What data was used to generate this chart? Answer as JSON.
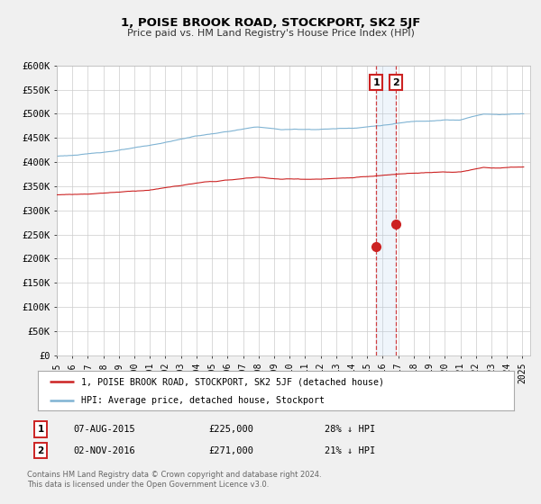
{
  "title": "1, POISE BROOK ROAD, STOCKPORT, SK2 5JF",
  "subtitle": "Price paid vs. HM Land Registry's House Price Index (HPI)",
  "ylabel_ticks": [
    "£0",
    "£50K",
    "£100K",
    "£150K",
    "£200K",
    "£250K",
    "£300K",
    "£350K",
    "£400K",
    "£450K",
    "£500K",
    "£550K",
    "£600K"
  ],
  "ylim": [
    0,
    600000
  ],
  "xlim_start": 1995.0,
  "xlim_end": 2025.5,
  "hpi_color": "#7fb3d3",
  "price_color": "#cc2222",
  "bg_color": "#f0f0f0",
  "plot_bg": "#ffffff",
  "grid_color": "#cccccc",
  "marker1_x": 2015.58,
  "marker1_y": 225000,
  "marker2_x": 2016.83,
  "marker2_y": 271000,
  "vline1_x": 2015.58,
  "vline2_x": 2016.83,
  "legend_label1": "1, POISE BROOK ROAD, STOCKPORT, SK2 5JF (detached house)",
  "legend_label2": "HPI: Average price, detached house, Stockport",
  "annotation1_num": "1",
  "annotation2_num": "2",
  "ann1_date": "07-AUG-2015",
  "ann1_price": "£225,000",
  "ann1_hpi": "28% ↓ HPI",
  "ann2_date": "02-NOV-2016",
  "ann2_price": "£271,000",
  "ann2_hpi": "21% ↓ HPI",
  "footer1": "Contains HM Land Registry data © Crown copyright and database right 2024.",
  "footer2": "This data is licensed under the Open Government Licence v3.0."
}
